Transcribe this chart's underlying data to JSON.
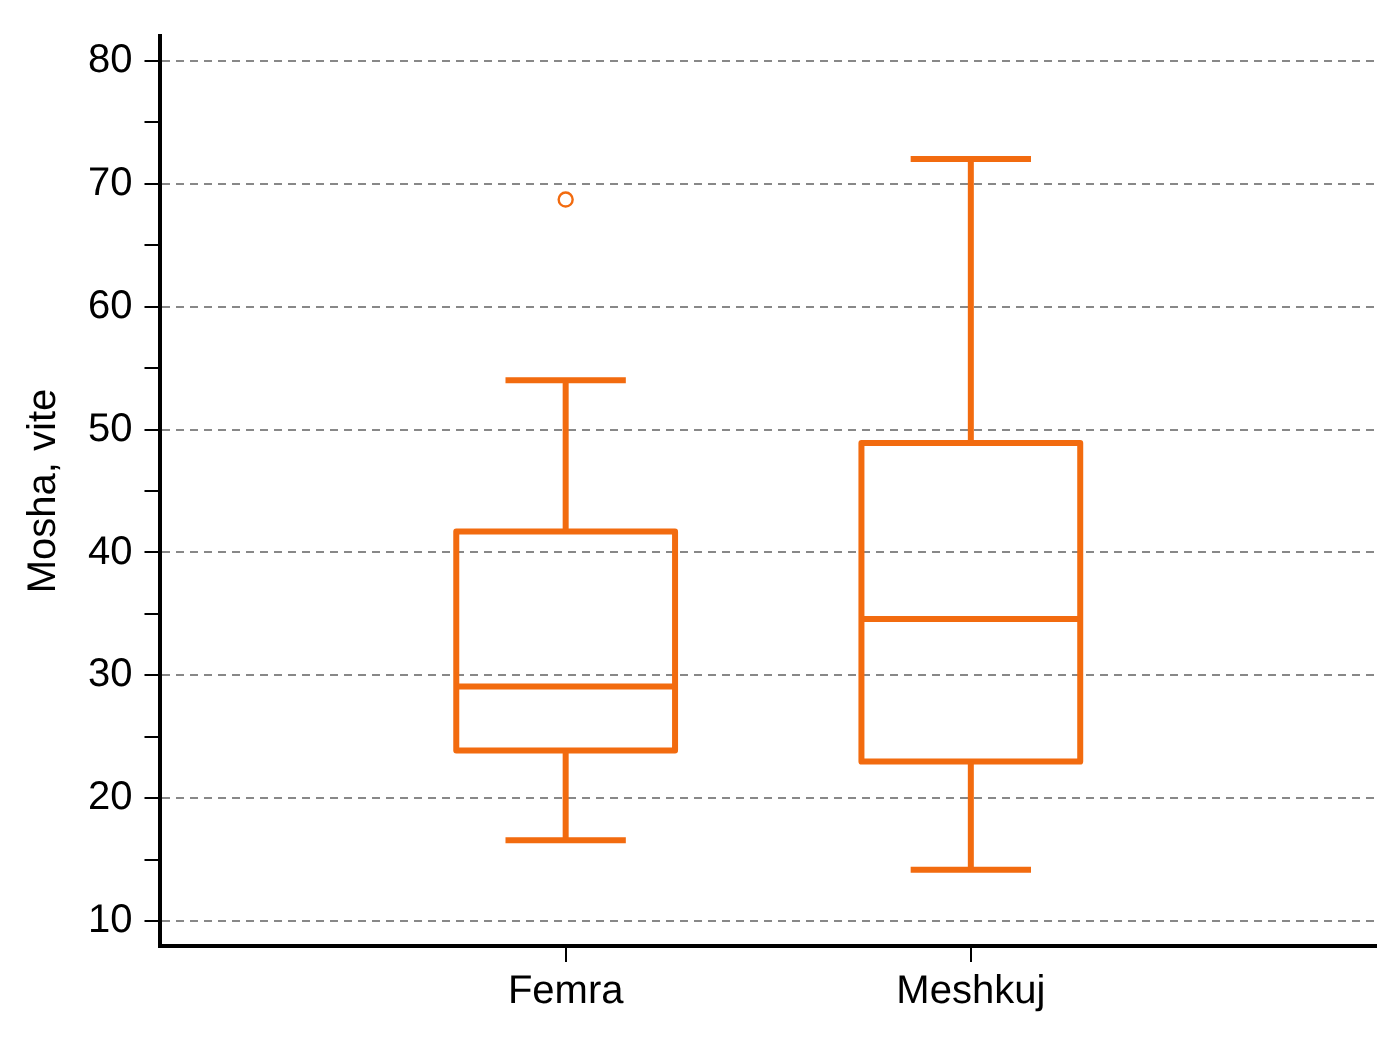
{
  "chart_data": {
    "type": "box",
    "ylabel": "Mosha, vite",
    "categories": [
      "Femra",
      "Meshkuj"
    ],
    "series": [
      {
        "color": "#f26b0f",
        "boxes": [
          {
            "low": 16.6,
            "q1": 23.9,
            "median": 29.1,
            "q3": 41.7,
            "high": 54,
            "outliers": [
              68.7
            ]
          },
          {
            "low": 14.2,
            "q1": 23,
            "median": 34.6,
            "q3": 48.9,
            "high": 72
          }
        ]
      }
    ],
    "ylim": [
      8,
      82
    ],
    "yticks": [
      10,
      {
        "value": 15,
        "label": null
      },
      20,
      {
        "value": 25,
        "label": null
      },
      30,
      {
        "value": 35,
        "label": null
      },
      40,
      {
        "value": 45,
        "label": null
      },
      50,
      {
        "value": 55,
        "label": null
      },
      60,
      {
        "value": 65,
        "label": null
      },
      70,
      {
        "value": 75,
        "label": null
      },
      80
    ],
    "grid": "y",
    "legend": false
  }
}
